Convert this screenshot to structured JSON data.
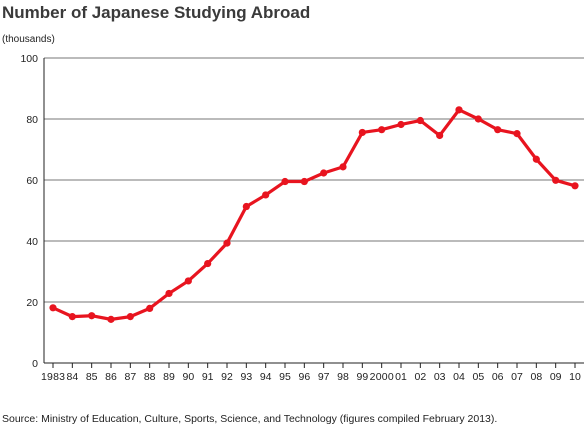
{
  "chart_data": {
    "type": "line",
    "title": "Number of Japanese Studying Abroad",
    "ylabel": "(thousands)",
    "xlabel": "",
    "source": "Source: Ministry of Education, Culture, Sports, Science, and Technology (figures compiled February 2013).",
    "categories": [
      "1983",
      "84",
      "85",
      "86",
      "87",
      "88",
      "89",
      "90",
      "91",
      "92",
      "93",
      "94",
      "95",
      "96",
      "97",
      "98",
      "99",
      "2000",
      "01",
      "02",
      "03",
      "04",
      "05",
      "06",
      "07",
      "08",
      "09",
      "10"
    ],
    "series": [
      {
        "name": "",
        "values": [
          18.1,
          15.2,
          15.5,
          14.3,
          15.2,
          17.9,
          22.8,
          26.9,
          32.6,
          39.3,
          51.3,
          55.1,
          59.5,
          59.5,
          62.3,
          64.3,
          75.6,
          76.5,
          78.2,
          79.5,
          74.6,
          83.0,
          80.0,
          76.5,
          75.2,
          66.8,
          59.9,
          58.1
        ]
      }
    ],
    "ylim": [
      0,
      100
    ],
    "yticks": [
      0,
      20,
      40,
      60,
      80,
      100
    ],
    "grid": true,
    "line_color": "#e8141f",
    "grid_color": "#777777"
  }
}
